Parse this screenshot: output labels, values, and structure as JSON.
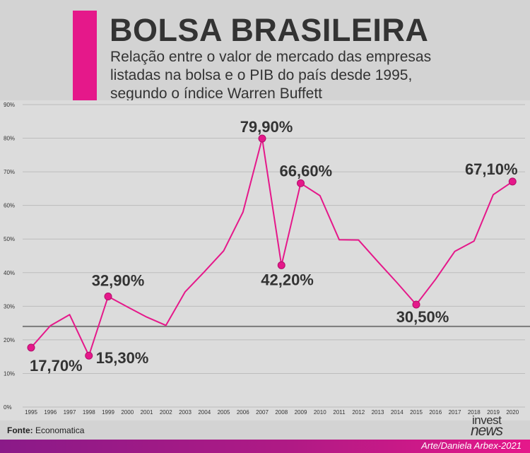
{
  "header": {
    "title": "BOLSA BRASILEIRA",
    "subtitle": "Relação entre o valor de mercado das  empresas\nlistadas na bolsa e o PIB do país desde 1995,\nsegundo o índice  Warren Buffett",
    "accent_color": "#e5188a"
  },
  "footer": {
    "source_label": "Fonte:",
    "source_value": "Economatica",
    "credit": "Arte/Daniela Arbex-2021",
    "logo_line1": "invest",
    "logo_line2": "news"
  },
  "chart_data": {
    "type": "line",
    "title": "",
    "xlabel": "",
    "ylabel": "",
    "ylim": [
      0,
      90
    ],
    "y_ticks": [
      "0%",
      "10%",
      "20%",
      "30%",
      "40%",
      "50%",
      "60%",
      "70%",
      "80%",
      "90%"
    ],
    "grid": true,
    "reference_line": 24,
    "line_color": "#e5188a",
    "series": [
      {
        "x": [
          "1995",
          "1996",
          "1997",
          "1998",
          "1999",
          "2000",
          "2001",
          "2002",
          "2003",
          "2004",
          "2005",
          "2006",
          "2007",
          "2008",
          "2009",
          "2010",
          "2011",
          "2012",
          "2013",
          "2014",
          "2015",
          "2016",
          "2017",
          "2018",
          "2019",
          "2020"
        ],
        "values": [
          17.7,
          24.2,
          27.5,
          15.3,
          32.9,
          29.8,
          26.8,
          24.3,
          34.3,
          40.3,
          46.5,
          58.0,
          79.9,
          42.2,
          66.6,
          62.9,
          49.8,
          49.7,
          43.3,
          37.0,
          30.5,
          38.0,
          46.3,
          49.4,
          63.2,
          67.1
        ]
      }
    ],
    "annotations": [
      {
        "year": "1995",
        "label": "17,70%"
      },
      {
        "year": "1998",
        "label": "15,30%"
      },
      {
        "year": "1999",
        "label": "32,90%"
      },
      {
        "year": "2007",
        "label": "79,90%"
      },
      {
        "year": "2008",
        "label": "42,20%"
      },
      {
        "year": "2009",
        "label": "66,60%"
      },
      {
        "year": "2015",
        "label": "30,50%"
      },
      {
        "year": "2020",
        "label": "67,10%"
      }
    ]
  }
}
